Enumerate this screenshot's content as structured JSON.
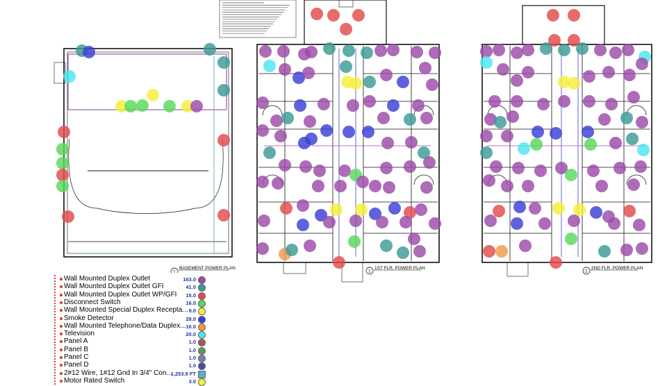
{
  "plans": {
    "basement_title": "BASEMENT POWER PLAN",
    "basement_number": "1",
    "first_title": "1ST FLR. POWER PLAN",
    "first_number": "1",
    "second_title": "2ND FLR. POWER PLAN",
    "second_number": "2"
  },
  "legend": {
    "items": [
      {
        "label": "Wall Mounted Duplex Outlet",
        "count": "163.0",
        "color": "#9b4aa8",
        "shape": "circle"
      },
      {
        "label": "Wall Mounted Duplex Outlet GFI",
        "count": "41.0",
        "color": "#3c9a96",
        "shape": "circle"
      },
      {
        "label": "Wall Mounted Duplex Outlet WP/GFI",
        "count": "15.0",
        "color": "#e24a4a",
        "shape": "circle"
      },
      {
        "label": "Disconnect Switch",
        "count": "16.0",
        "color": "#59d85a",
        "shape": "circle"
      },
      {
        "label": "Wall Mounted Special Duplex Recepta...",
        "count": "8.0",
        "color": "#f4ef3a",
        "shape": "circle"
      },
      {
        "label": "Smoke Detector",
        "count": "28.0",
        "color": "#3a3fd6",
        "shape": "circle"
      },
      {
        "label": "Wall Mounted Telephone/Data Duplex...",
        "count": "16.0",
        "color": "#f29a4a",
        "shape": "circle"
      },
      {
        "label": "Television",
        "count": "20.0",
        "color": "#4ce6f0",
        "shape": "circle"
      },
      {
        "label": "Panel A",
        "count": "1.0",
        "color": "#a8565a",
        "shape": "circle"
      },
      {
        "label": "Panel B",
        "count": "1.0",
        "color": "#5a9a4a",
        "shape": "circle"
      },
      {
        "label": "Panel C",
        "count": "1.0",
        "color": "#7a7fb0",
        "shape": "circle"
      },
      {
        "label": "Panel D",
        "count": "1.0",
        "color": "#4a4f9a",
        "shape": "circle"
      },
      {
        "label": "2#12 Wire, 1#12 Gnd In 3/4\" Con...",
        "count": "1,253.9 FT",
        "color": "#5ab0c8",
        "shape": "square"
      },
      {
        "label": "Motor Rated Switch",
        "count": "3.0",
        "color": "#f4ef3a",
        "shape": "circle"
      }
    ]
  }
}
